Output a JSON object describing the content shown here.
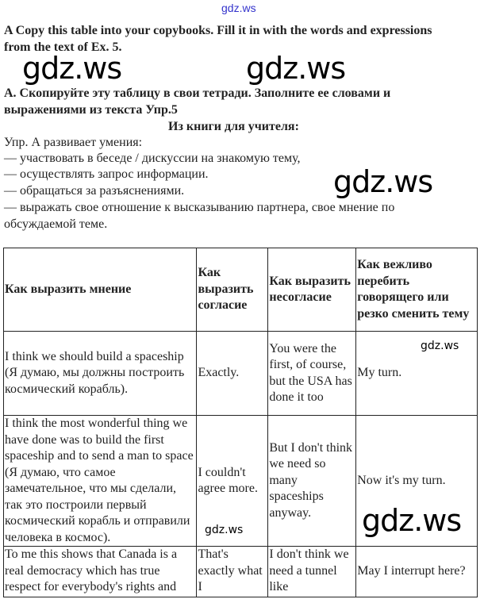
{
  "watermark": "gdz.ws",
  "task_en": "A Copy this table into your copybooks. Fill it in with the words and expressions from the text of Ex. 5.",
  "task_ru": "А. Скопируйте эту таблицу в свои тетради. Заполните ее словами и выражениями из текста Упр.5",
  "teacher_heading": "Из книги для учителя:",
  "intro": "Упр. А развивает умения:",
  "skills": [
    "— участвовать в беседе / дискуссии на знакомую тему,",
    "— осуществлять запрос информации.",
    "— обращаться за разъяснениями.",
    "— выражать свое отношение к высказыванию партнера, свое мнение по обсуждаемой теме."
  ],
  "table": {
    "headers": [
      "Как выразить мнение",
      "Как выразить согласие",
      "Как выразить несогласие",
      "Как вежливо перебить говорящего или резко сменить тему"
    ],
    "rows": [
      [
        "I think we should build a spaceship (Я думаю, мы должны построить космический корабль).",
        "Exactly.",
        "You were the first, of course, but the USA has done it too",
        "My turn."
      ],
      [
        "I think the most wonderful thing we have done was to build the first spaceship and to send a man to space (Я думаю, что самое замечательное, что мы сделали, так это построили первый космический корабль и отправили человека в космос).",
        "I couldn't agree more.",
        "But I don't think we need so many spaceships anyway.",
        "Now it's my turn."
      ],
      [
        "To me this shows that Canada is a real democracy which has true respect for everybody's rights and",
        "That's exactly what I",
        "I don't think we need a tunnel like",
        "May I interrupt here?"
      ]
    ]
  }
}
